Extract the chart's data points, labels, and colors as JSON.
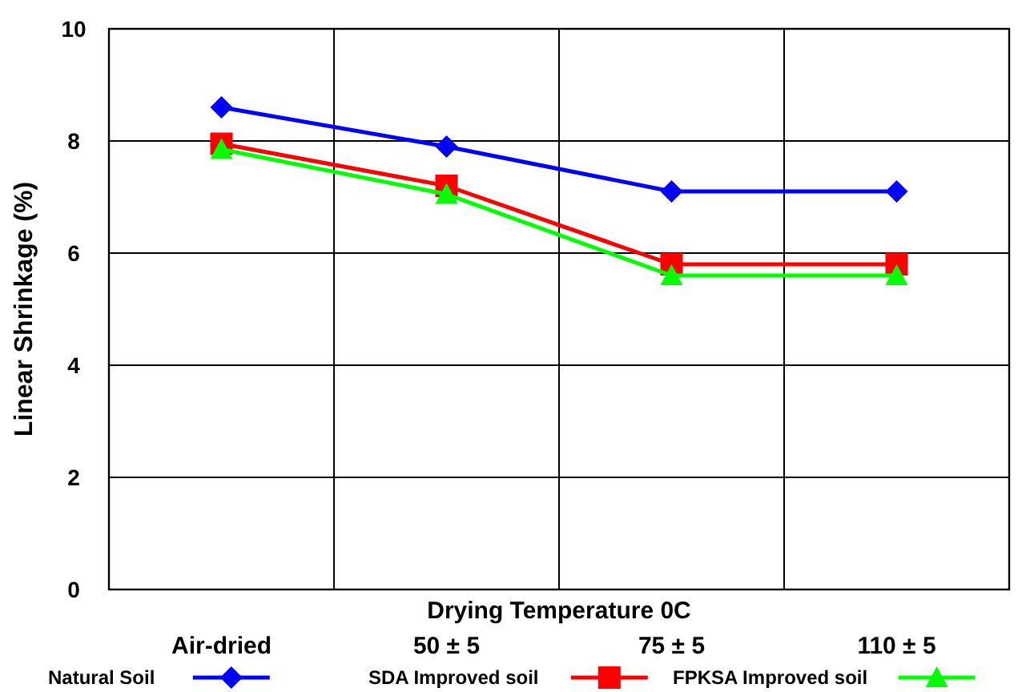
{
  "chart_data": {
    "type": "line",
    "xlabel": "Drying Temperature 0C",
    "ylabel": "Linear Shrinkage (%)",
    "categories": [
      "Air-dried",
      "50 ± 5",
      "75 ± 5",
      "110 ± 5"
    ],
    "series": [
      {
        "name": "Natural Soil",
        "color": "#0000ff",
        "marker": "diamond",
        "values": [
          8.6,
          7.9,
          7.1,
          7.1
        ]
      },
      {
        "name": "SDA Improved soil",
        "color": "#ff0000",
        "marker": "square",
        "values": [
          7.95,
          7.2,
          5.8,
          5.8
        ]
      },
      {
        "name": "FPKSA Improved soil",
        "color": "#00ff00",
        "marker": "triangle",
        "values": [
          7.85,
          7.05,
          5.6,
          5.6
        ]
      }
    ],
    "ylim": [
      0,
      10
    ],
    "yticks": [
      0,
      2,
      4,
      6,
      8,
      10
    ],
    "grid": true,
    "legend": "bottom",
    "line_style": "solid"
  }
}
